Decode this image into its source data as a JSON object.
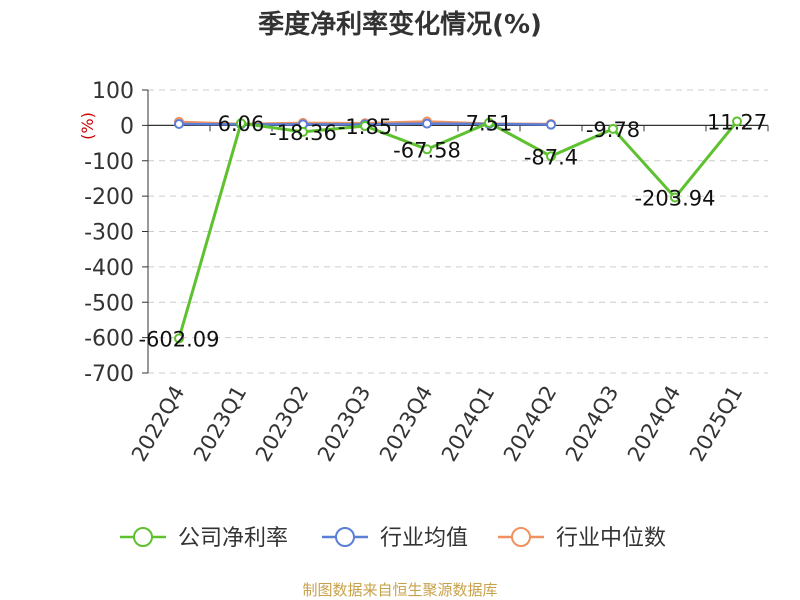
{
  "chart_data": {
    "type": "line",
    "title": "季度净利率变化情况(%)",
    "ylabel": "(%)",
    "ylim": [
      -700,
      100
    ],
    "yticks": [
      100,
      0,
      -100,
      -200,
      -300,
      -400,
      -500,
      -600,
      -700
    ],
    "grid": true,
    "categories": [
      "2022Q4",
      "2023Q1",
      "2023Q2",
      "2023Q3",
      "2023Q4",
      "2024Q1",
      "2024Q2",
      "2024Q3",
      "2024Q4",
      "2025Q1"
    ],
    "series": [
      {
        "name": "公司净利率",
        "color": "#5ec12f",
        "values": [
          -602.09,
          6.06,
          -18.36,
          -1.85,
          -67.58,
          7.51,
          -87.4,
          -9.78,
          -203.94,
          11.27
        ],
        "labels": [
          "-602.09",
          "6.06",
          "-18.36",
          "-1.85",
          "-67.58",
          "7.51",
          "-87.4",
          "-9.78",
          "-203.94",
          "11.27"
        ]
      },
      {
        "name": "行业均值",
        "color": "#5b7fd6",
        "values": [
          4,
          3,
          3,
          3,
          5,
          4,
          2,
          null,
          null,
          null
        ]
      },
      {
        "name": "行业中位数",
        "color": "#f0915f",
        "values": [
          10,
          4,
          7,
          6,
          11,
          5,
          4,
          null,
          null,
          null
        ]
      }
    ],
    "legend_position": "bottom"
  },
  "source": "制图数据来自恒生聚源数据库"
}
